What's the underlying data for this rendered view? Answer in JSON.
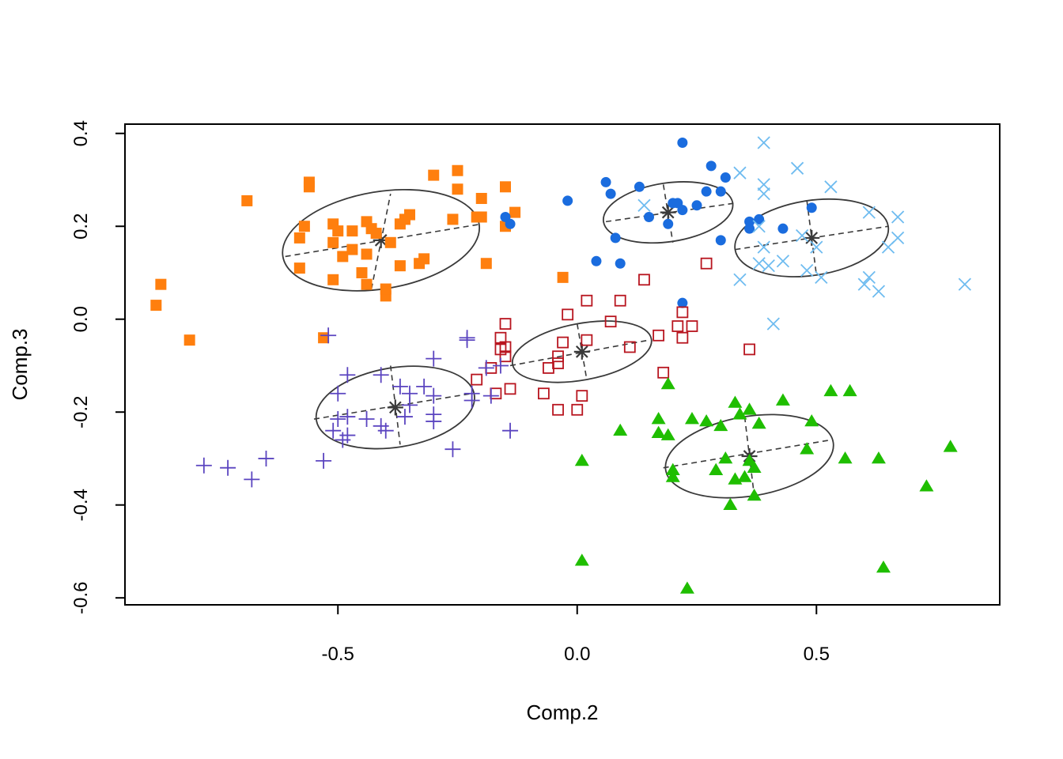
{
  "chart_data": {
    "type": "scatter",
    "title": "",
    "xlabel": "Comp.2",
    "ylabel": "Comp.3",
    "xlim": [
      -0.945,
      0.883
    ],
    "ylim": [
      -0.615,
      0.42
    ],
    "x_ticks": [
      -0.5,
      0.0,
      0.5
    ],
    "y_ticks": [
      -0.6,
      -0.4,
      -0.2,
      0.0,
      0.2,
      0.4
    ],
    "x_tick_labels": [
      "-0.5",
      "0.0",
      "0.5"
    ],
    "y_tick_labels": [
      "-0.6",
      "-0.4",
      "-0.2",
      "0.0",
      "0.2",
      "0.4"
    ],
    "grid": false,
    "legend": "none",
    "series": [
      {
        "marker": "filled-square",
        "color": "#ff7f0e",
        "points": [
          [
            -0.88,
            0.03
          ],
          [
            -0.87,
            0.075
          ],
          [
            -0.81,
            -0.045
          ],
          [
            -0.69,
            0.255
          ],
          [
            -0.56,
            0.295
          ],
          [
            -0.56,
            0.285
          ],
          [
            -0.58,
            0.175
          ],
          [
            -0.58,
            0.11
          ],
          [
            -0.57,
            0.2
          ],
          [
            -0.51,
            0.205
          ],
          [
            -0.51,
            0.165
          ],
          [
            -0.51,
            0.085
          ],
          [
            -0.53,
            -0.04
          ],
          [
            -0.5,
            0.19
          ],
          [
            -0.49,
            0.135
          ],
          [
            -0.47,
            0.15
          ],
          [
            -0.47,
            0.19
          ],
          [
            -0.45,
            0.1
          ],
          [
            -0.44,
            0.075
          ],
          [
            -0.44,
            0.21
          ],
          [
            -0.44,
            0.14
          ],
          [
            -0.43,
            0.195
          ],
          [
            -0.42,
            0.185
          ],
          [
            -0.4,
            0.05
          ],
          [
            -0.4,
            0.065
          ],
          [
            -0.39,
            0.165
          ],
          [
            -0.37,
            0.205
          ],
          [
            -0.36,
            0.215
          ],
          [
            -0.35,
            0.225
          ],
          [
            -0.37,
            0.115
          ],
          [
            -0.33,
            0.12
          ],
          [
            -0.32,
            0.13
          ],
          [
            -0.3,
            0.31
          ],
          [
            -0.26,
            0.215
          ],
          [
            -0.25,
            0.32
          ],
          [
            -0.25,
            0.28
          ],
          [
            -0.21,
            0.22
          ],
          [
            -0.2,
            0.26
          ],
          [
            -0.2,
            0.22
          ],
          [
            -0.19,
            0.12
          ],
          [
            -0.15,
            0.285
          ],
          [
            -0.15,
            0.2
          ],
          [
            -0.13,
            0.23
          ],
          [
            -0.03,
            0.09
          ]
        ]
      },
      {
        "marker": "filled-circle",
        "color": "#1a6cde",
        "points": [
          [
            -0.15,
            0.22
          ],
          [
            -0.14,
            0.205
          ],
          [
            -0.02,
            0.255
          ],
          [
            0.04,
            0.125
          ],
          [
            0.06,
            0.295
          ],
          [
            0.07,
            0.27
          ],
          [
            0.08,
            0.175
          ],
          [
            0.09,
            0.12
          ],
          [
            0.13,
            0.285
          ],
          [
            0.15,
            0.22
          ],
          [
            0.19,
            0.205
          ],
          [
            0.2,
            0.25
          ],
          [
            0.21,
            0.25
          ],
          [
            0.22,
            0.035
          ],
          [
            0.22,
            0.38
          ],
          [
            0.22,
            0.235
          ],
          [
            0.25,
            0.245
          ],
          [
            0.27,
            0.275
          ],
          [
            0.28,
            0.33
          ],
          [
            0.3,
            0.275
          ],
          [
            0.3,
            0.17
          ],
          [
            0.31,
            0.305
          ],
          [
            0.36,
            0.195
          ],
          [
            0.36,
            0.21
          ],
          [
            0.38,
            0.215
          ],
          [
            0.43,
            0.195
          ],
          [
            0.49,
            0.24
          ]
        ]
      },
      {
        "marker": "x",
        "color": "#6fbcf0",
        "points": [
          [
            0.14,
            0.245
          ],
          [
            0.34,
            0.085
          ],
          [
            0.34,
            0.315
          ],
          [
            0.38,
            0.12
          ],
          [
            0.38,
            0.2
          ],
          [
            0.39,
            0.38
          ],
          [
            0.39,
            0.29
          ],
          [
            0.39,
            0.27
          ],
          [
            0.39,
            0.155
          ],
          [
            0.4,
            0.115
          ],
          [
            0.41,
            -0.01
          ],
          [
            0.43,
            0.125
          ],
          [
            0.46,
            0.325
          ],
          [
            0.47,
            0.18
          ],
          [
            0.48,
            0.105
          ],
          [
            0.5,
            0.155
          ],
          [
            0.51,
            0.09
          ],
          [
            0.53,
            0.285
          ],
          [
            0.6,
            0.075
          ],
          [
            0.61,
            0.23
          ],
          [
            0.61,
            0.09
          ],
          [
            0.63,
            0.06
          ],
          [
            0.65,
            0.155
          ],
          [
            0.67,
            0.22
          ],
          [
            0.67,
            0.175
          ],
          [
            0.81,
            0.075
          ]
        ]
      },
      {
        "marker": "open-square",
        "color": "#b8151f",
        "points": [
          [
            -0.21,
            -0.13
          ],
          [
            -0.18,
            -0.105
          ],
          [
            -0.17,
            -0.16
          ],
          [
            -0.16,
            -0.04
          ],
          [
            -0.16,
            -0.065
          ],
          [
            -0.15,
            -0.01
          ],
          [
            -0.15,
            -0.06
          ],
          [
            -0.15,
            -0.08
          ],
          [
            -0.14,
            -0.15
          ],
          [
            -0.07,
            -0.16
          ],
          [
            -0.06,
            -0.105
          ],
          [
            -0.04,
            -0.08
          ],
          [
            -0.04,
            -0.195
          ],
          [
            -0.04,
            -0.095
          ],
          [
            -0.03,
            -0.05
          ],
          [
            -0.02,
            0.01
          ],
          [
            0.0,
            -0.195
          ],
          [
            0.01,
            -0.165
          ],
          [
            0.02,
            0.04
          ],
          [
            0.02,
            -0.045
          ],
          [
            0.07,
            -0.005
          ],
          [
            0.09,
            0.04
          ],
          [
            0.11,
            -0.06
          ],
          [
            0.14,
            0.085
          ],
          [
            0.17,
            -0.035
          ],
          [
            0.18,
            -0.115
          ],
          [
            0.21,
            -0.015
          ],
          [
            0.22,
            0.015
          ],
          [
            0.22,
            -0.04
          ],
          [
            0.24,
            -0.015
          ],
          [
            0.27,
            0.12
          ],
          [
            0.36,
            -0.065
          ]
        ]
      },
      {
        "marker": "plus",
        "color": "#5b45c0",
        "points": [
          [
            -0.78,
            -0.315
          ],
          [
            -0.73,
            -0.32
          ],
          [
            -0.68,
            -0.345
          ],
          [
            -0.65,
            -0.3
          ],
          [
            -0.53,
            -0.305
          ],
          [
            -0.52,
            -0.035
          ],
          [
            -0.51,
            -0.24
          ],
          [
            -0.5,
            -0.16
          ],
          [
            -0.5,
            -0.215
          ],
          [
            -0.49,
            -0.26
          ],
          [
            -0.48,
            -0.25
          ],
          [
            -0.48,
            -0.21
          ],
          [
            -0.48,
            -0.12
          ],
          [
            -0.44,
            -0.215
          ],
          [
            -0.41,
            -0.12
          ],
          [
            -0.41,
            -0.23
          ],
          [
            -0.4,
            -0.24
          ],
          [
            -0.37,
            -0.145
          ],
          [
            -0.36,
            -0.21
          ],
          [
            -0.35,
            -0.16
          ],
          [
            -0.35,
            -0.185
          ],
          [
            -0.32,
            -0.145
          ],
          [
            -0.3,
            -0.205
          ],
          [
            -0.3,
            -0.085
          ],
          [
            -0.3,
            -0.165
          ],
          [
            -0.3,
            -0.22
          ],
          [
            -0.26,
            -0.28
          ],
          [
            -0.23,
            -0.04
          ],
          [
            -0.23,
            -0.045
          ],
          [
            -0.22,
            -0.16
          ],
          [
            -0.22,
            -0.175
          ],
          [
            -0.19,
            -0.105
          ],
          [
            -0.18,
            -0.165
          ],
          [
            -0.16,
            -0.1
          ],
          [
            -0.14,
            -0.24
          ]
        ]
      },
      {
        "marker": "filled-triangle",
        "color": "#1fbe00",
        "points": [
          [
            0.01,
            -0.305
          ],
          [
            0.01,
            -0.52
          ],
          [
            0.09,
            -0.24
          ],
          [
            0.17,
            -0.215
          ],
          [
            0.17,
            -0.245
          ],
          [
            0.19,
            -0.14
          ],
          [
            0.19,
            -0.25
          ],
          [
            0.2,
            -0.34
          ],
          [
            0.2,
            -0.325
          ],
          [
            0.23,
            -0.58
          ],
          [
            0.24,
            -0.215
          ],
          [
            0.27,
            -0.22
          ],
          [
            0.29,
            -0.325
          ],
          [
            0.3,
            -0.23
          ],
          [
            0.31,
            -0.3
          ],
          [
            0.32,
            -0.4
          ],
          [
            0.33,
            -0.18
          ],
          [
            0.33,
            -0.345
          ],
          [
            0.34,
            -0.205
          ],
          [
            0.35,
            -0.34
          ],
          [
            0.36,
            -0.195
          ],
          [
            0.36,
            -0.305
          ],
          [
            0.37,
            -0.38
          ],
          [
            0.37,
            -0.32
          ],
          [
            0.38,
            -0.225
          ],
          [
            0.43,
            -0.175
          ],
          [
            0.48,
            -0.28
          ],
          [
            0.49,
            -0.22
          ],
          [
            0.53,
            -0.155
          ],
          [
            0.56,
            -0.3
          ],
          [
            0.57,
            -0.155
          ],
          [
            0.63,
            -0.3
          ],
          [
            0.64,
            -0.535
          ],
          [
            0.73,
            -0.36
          ],
          [
            0.78,
            -0.275
          ]
        ]
      }
    ],
    "ellipses": [
      {
        "center": [
          -0.41,
          0.17
        ],
        "major_axis": [
          [
            -0.61,
            0.135
          ],
          [
            -0.2,
            0.205
          ]
        ],
        "minor_axis": [
          [
            -0.43,
            0.065
          ],
          [
            -0.39,
            0.27
          ]
        ]
      },
      {
        "center": [
          0.19,
          0.23
        ],
        "major_axis": [
          [
            0.06,
            0.21
          ],
          [
            0.33,
            0.25
          ]
        ],
        "minor_axis": [
          [
            0.18,
            0.29
          ],
          [
            0.2,
            0.165
          ]
        ]
      },
      {
        "center": [
          0.49,
          0.175
        ],
        "major_axis": [
          [
            0.33,
            0.15
          ],
          [
            0.65,
            0.2
          ]
        ],
        "minor_axis": [
          [
            0.48,
            0.255
          ],
          [
            0.5,
            0.095
          ]
        ]
      },
      {
        "center": [
          0.01,
          -0.07
        ],
        "major_axis": [
          [
            -0.14,
            -0.1
          ],
          [
            0.15,
            -0.045
          ]
        ],
        "minor_axis": [
          [
            0.0,
            -0.01
          ],
          [
            0.02,
            -0.13
          ]
        ]
      },
      {
        "center": [
          -0.38,
          -0.19
        ],
        "major_axis": [
          [
            -0.55,
            -0.215
          ],
          [
            -0.22,
            -0.16
          ]
        ],
        "minor_axis": [
          [
            -0.39,
            -0.1
          ],
          [
            -0.37,
            -0.27
          ]
        ]
      },
      {
        "center": [
          0.36,
          -0.295
        ],
        "major_axis": [
          [
            0.18,
            -0.32
          ],
          [
            0.53,
            -0.26
          ]
        ],
        "minor_axis": [
          [
            0.35,
            -0.21
          ],
          [
            0.37,
            -0.38
          ]
        ]
      }
    ],
    "ellipse_color": "#3a3a3a"
  }
}
